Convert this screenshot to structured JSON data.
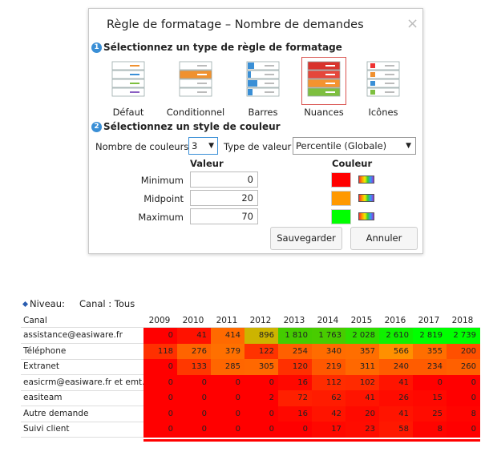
{
  "dialog": {
    "title": "Règle de formatage – Nombre de demandes",
    "close": "×",
    "step1": {
      "number": "1",
      "label": "Sélectionnez un type de règle de formatage"
    },
    "rule_types": [
      "Défaut",
      "Conditionnel",
      "Barres",
      "Nuances",
      "Icônes"
    ],
    "step2": {
      "number": "2",
      "label": "Sélectionnez un style de couleur"
    },
    "color_count_label": "Nombre de couleurs",
    "color_count": "3",
    "value_type_label": "Type de valeur",
    "value_type": "Percentile (Globale)",
    "headers": {
      "value": "Valeur",
      "color": "Couleur"
    },
    "rows": [
      {
        "label": "Minimum",
        "value": "0",
        "color": "#ff0000"
      },
      {
        "label": "Midpoint",
        "value": "20",
        "color": "#ff9900"
      },
      {
        "label": "Maximum",
        "value": "70",
        "color": "#00ff00"
      }
    ],
    "buttons": [
      "Sauvegarder",
      "Annuler"
    ]
  },
  "table": {
    "level_label": "Niveau:",
    "level_value": "Canal : Tous",
    "columns": [
      "Canal",
      "2009",
      "2010",
      "2011",
      "2012",
      "2013",
      "2014",
      "2015",
      "2016",
      "2017",
      "2018"
    ],
    "rows": [
      {
        "label": "assistance@easiware.fr",
        "cells": [
          "0",
          "41",
          "414",
          "896",
          "1 810",
          "1 763",
          "2 028",
          "2 610",
          "2 819",
          "2 739"
        ],
        "colors": [
          "#ff0000",
          "#ff1200",
          "#ff6a00",
          "#ccb400",
          "#44cc00",
          "#48cc00",
          "#30dd00",
          "#10f000",
          "#00ff00",
          "#00ff00"
        ]
      },
      {
        "label": "Téléphone",
        "cells": [
          "118",
          "276",
          "379",
          "122",
          "254",
          "340",
          "357",
          "566",
          "355",
          "200"
        ],
        "colors": [
          "#ff3000",
          "#ff6400",
          "#ff7000",
          "#ff3200",
          "#ff6000",
          "#ff6c00",
          "#ff6e00",
          "#ff9000",
          "#ff6e00",
          "#ff5000"
        ]
      },
      {
        "label": "Extranet",
        "cells": [
          "0",
          "133",
          "285",
          "305",
          "120",
          "219",
          "311",
          "240",
          "234",
          "260"
        ],
        "colors": [
          "#ff0000",
          "#ff3800",
          "#ff6600",
          "#ff6800",
          "#ff3000",
          "#ff5800",
          "#ff6800",
          "#ff5c00",
          "#ff5c00",
          "#ff6000"
        ]
      },
      {
        "label": "easicrm@easiware.fr et emt.",
        "cells": [
          "0",
          "0",
          "0",
          "0",
          "16",
          "112",
          "102",
          "41",
          "0",
          "0"
        ],
        "colors": [
          "#ff0000",
          "#ff0000",
          "#ff0000",
          "#ff0000",
          "#ff0800",
          "#ff2c00",
          "#ff2a00",
          "#ff1400",
          "#ff0000",
          "#ff0000"
        ]
      },
      {
        "label": "easiteam",
        "cells": [
          "0",
          "0",
          "0",
          "2",
          "72",
          "62",
          "41",
          "26",
          "15",
          "0"
        ],
        "colors": [
          "#ff0000",
          "#ff0000",
          "#ff0000",
          "#ff0000",
          "#ff2000",
          "#ff1c00",
          "#ff1400",
          "#ff0c00",
          "#ff0800",
          "#ff0000"
        ]
      },
      {
        "label": "Autre demande",
        "cells": [
          "0",
          "0",
          "0",
          "0",
          "16",
          "42",
          "20",
          "41",
          "25",
          "8"
        ],
        "colors": [
          "#ff0000",
          "#ff0000",
          "#ff0000",
          "#ff0000",
          "#ff0800",
          "#ff1400",
          "#ff0a00",
          "#ff1400",
          "#ff0c00",
          "#ff0400"
        ]
      },
      {
        "label": "Suivi client",
        "cells": [
          "0",
          "0",
          "0",
          "0",
          "0",
          "17",
          "23",
          "58",
          "8",
          "0"
        ],
        "colors": [
          "#ff0000",
          "#ff0000",
          "#ff0000",
          "#ff0000",
          "#ff0000",
          "#ff0800",
          "#ff0c00",
          "#ff1800",
          "#ff0400",
          "#ff0000"
        ]
      }
    ]
  }
}
